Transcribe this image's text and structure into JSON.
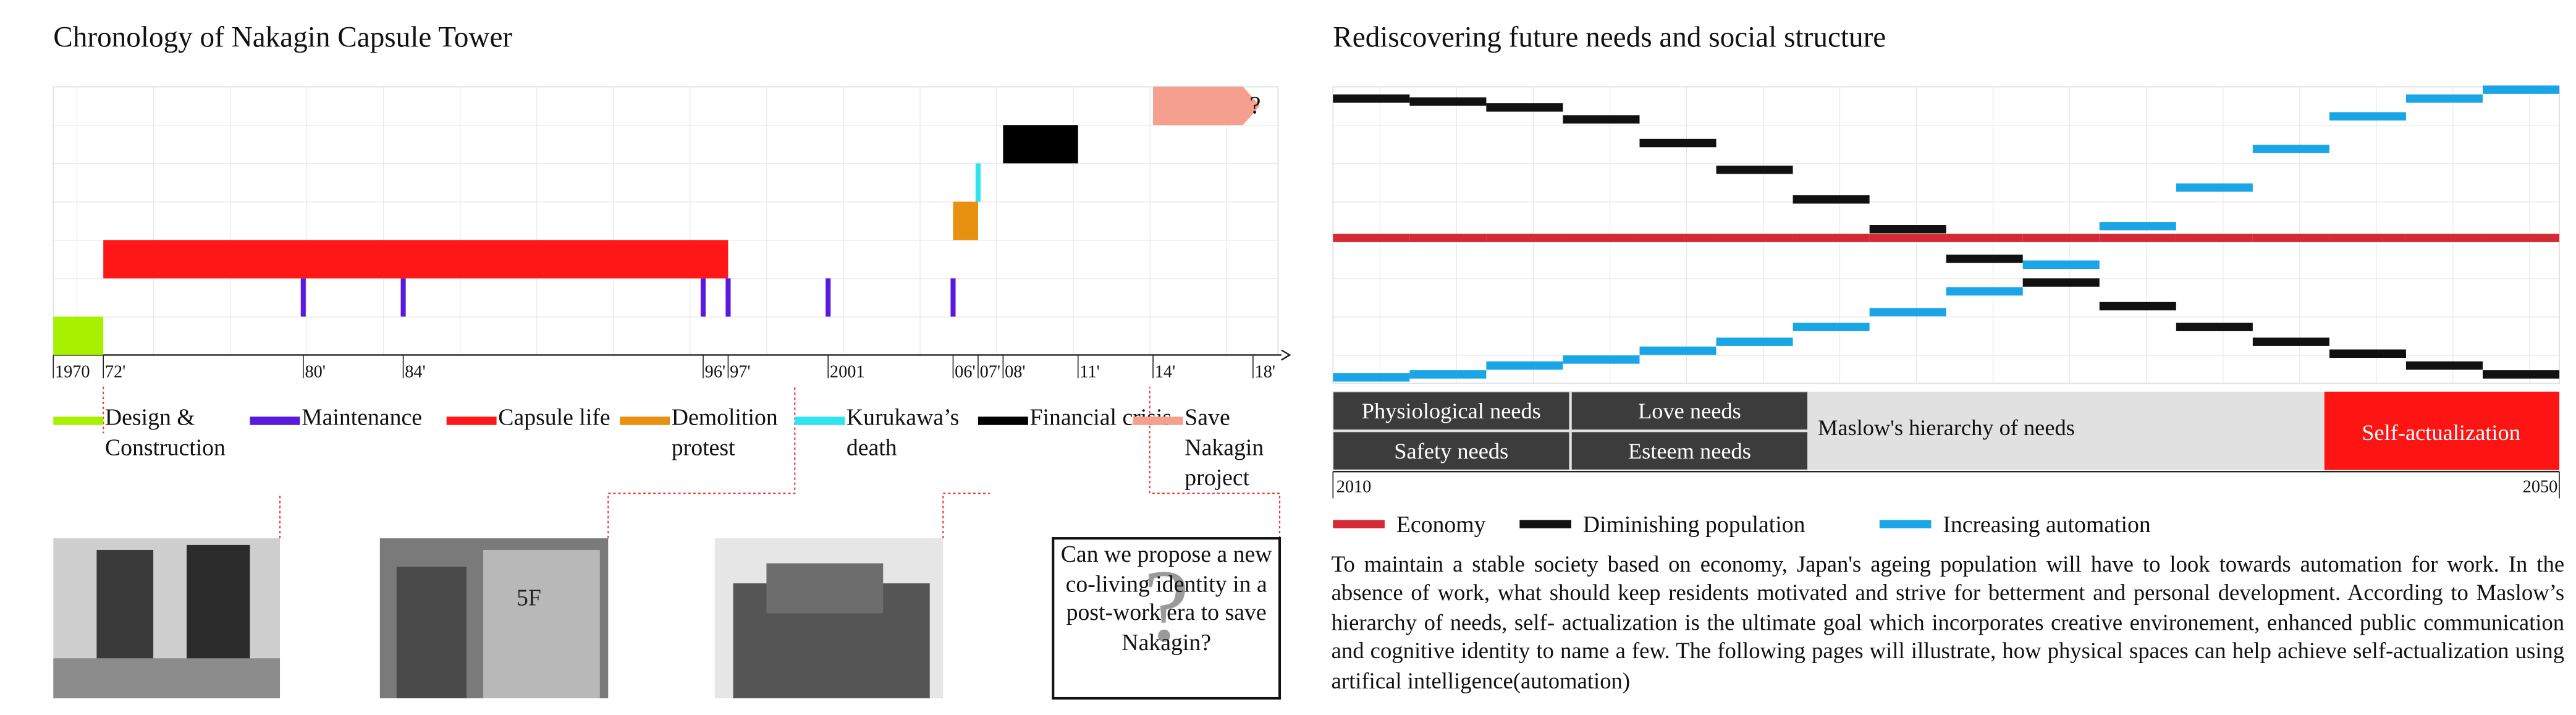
{
  "chart_data": [
    {
      "type": "timeline",
      "title": "Chronology of Nakagin Capsule Tower",
      "xlim": [
        1970,
        2019
      ],
      "xticks": [
        1970,
        {
          "value": 1972,
          "label": "72'"
        },
        {
          "value": 1980,
          "label": "80'"
        },
        {
          "value": 1984,
          "label": "84'"
        },
        {
          "value": 1996,
          "label": "96'"
        },
        {
          "value": 1997,
          "label": "97'"
        },
        2001,
        {
          "value": 2006,
          "label": "06'"
        },
        {
          "value": 2007,
          "label": "07'"
        },
        {
          "value": 2008,
          "label": "08'"
        },
        {
          "value": 2011,
          "label": "11'"
        },
        {
          "value": 2014,
          "label": "14'"
        },
        {
          "value": 2018,
          "label": "18'"
        }
      ],
      "series": [
        {
          "name": "Design & Construction",
          "color": "#a6f000",
          "values": [
            [
              1970,
              1972
            ]
          ]
        },
        {
          "name": "Maintenance",
          "color": "#5a1ade",
          "values": [
            1980,
            1984,
            1996,
            1997,
            2001,
            2006
          ]
        },
        {
          "name": "Capsule life",
          "color": "#ff1717",
          "values": [
            [
              1972,
              1997
            ]
          ]
        },
        {
          "name": "Demolition protest",
          "color": "#e8900f",
          "values": [
            [
              2006,
              2007
            ]
          ]
        },
        {
          "name": "Kurukawa’s death",
          "color": "#2ee4ef",
          "values": [
            2007
          ]
        },
        {
          "name": "Financial crisis",
          "color": "#000000",
          "values": [
            [
              2008,
              2011
            ]
          ]
        },
        {
          "name": "Save Nakagin project",
          "color": "#f5a08f",
          "values": [
            [
              2014,
              2018
            ]
          ],
          "marker": "arrow",
          "annotation": "?"
        }
      ],
      "grid": true
    },
    {
      "type": "step",
      "title": "Rediscovering future needs and social structure",
      "x": [
        2010,
        2012.5,
        2015,
        2017.5,
        2020,
        2022.5,
        2025,
        2027.5,
        2030,
        2032.5,
        2035,
        2037.5,
        2040,
        2042.5,
        2045,
        2047.5
      ],
      "xlim": [
        2010,
        2050
      ],
      "xticks": [
        2010,
        2050
      ],
      "ylim": [
        0,
        100
      ],
      "series": [
        {
          "name": "Economy",
          "color": "#d42a35",
          "values": [
            49,
            49,
            49,
            49,
            49,
            49,
            49,
            49,
            49,
            49,
            49,
            49,
            49,
            49,
            49,
            49
          ]
        },
        {
          "name": "Diminishing population",
          "color": "#111111",
          "values": [
            96,
            95,
            93,
            89,
            81,
            72,
            62,
            52,
            42,
            34,
            26,
            19,
            14,
            10,
            6,
            3
          ]
        },
        {
          "name": "Increasing automation",
          "color": "#1aa6e6",
          "values": [
            2,
            3,
            6,
            8,
            11,
            14,
            19,
            24,
            31,
            40,
            53,
            66,
            79,
            90,
            96,
            99
          ]
        }
      ],
      "grid": true
    }
  ],
  "maslow": {
    "label": "Maslow's hierarchy of needs",
    "needs": [
      "Physiological needs",
      "Safety needs",
      "Love needs",
      "Esteem needs"
    ],
    "goal": "Self-actualization"
  },
  "question": "Can we propose a new co-living identity in a post-work era to save Nakagin?",
  "question_mark": "?",
  "paragraph": "To maintain a stable society based on economy, Japan's ageing population will have to look towards automation for work. In the absence of work, what should keep residents motivated and strive for betterment and personal development. According to Maslow’s hierarchy of needs, self- actualization is the ultimate goal which incorporates creative environement, enhanced public communication and cognitive identity to name a few. The following pages will illustrate, how physical spaces can help achieve self-actualization using artifical intelligence(automation)"
}
